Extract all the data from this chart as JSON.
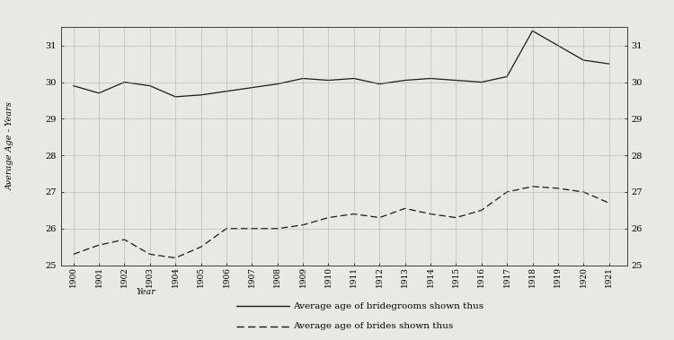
{
  "years": [
    1900,
    1901,
    1902,
    1903,
    1904,
    1905,
    1906,
    1907,
    1908,
    1909,
    1910,
    1911,
    1912,
    1913,
    1914,
    1915,
    1916,
    1917,
    1918,
    1919,
    1920,
    1921
  ],
  "bridegroom": [
    29.9,
    29.7,
    30.0,
    29.9,
    29.6,
    29.65,
    29.75,
    29.85,
    29.95,
    30.1,
    30.05,
    30.1,
    29.95,
    30.05,
    30.1,
    30.05,
    30.0,
    30.15,
    31.4,
    31.0,
    30.6,
    30.5
  ],
  "bride": [
    25.3,
    25.55,
    25.7,
    25.3,
    25.2,
    25.5,
    26.0,
    26.0,
    26.0,
    26.1,
    26.3,
    26.4,
    26.3,
    26.55,
    26.4,
    26.3,
    26.5,
    27.0,
    27.15,
    27.1,
    27.0,
    26.7
  ],
  "ylim": [
    25.0,
    31.5
  ],
  "yticks": [
    25,
    26,
    27,
    28,
    29,
    30,
    31
  ],
  "bg_color": "#e8e8e4",
  "plot_bg": "#e8e8e4",
  "line_color": "#1a1a1a",
  "grid_color": "#999999",
  "ylabel": "Average Age - Years",
  "xlabel": "Year",
  "legend1": "Average age of bridegrooms shown thus",
  "legend2": "Average age of brides shown thus"
}
